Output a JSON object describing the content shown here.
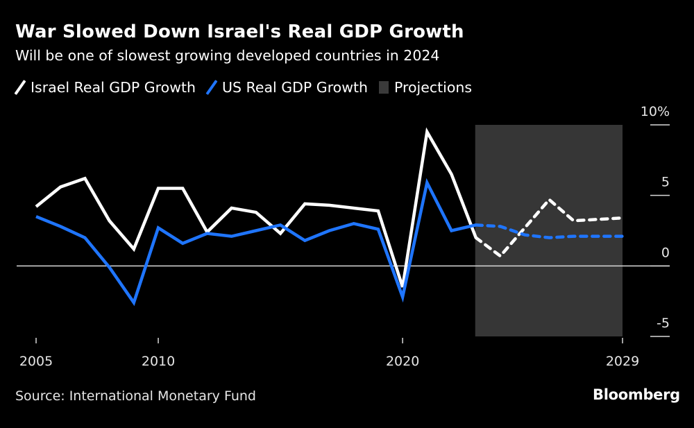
{
  "header": {
    "title": "War Slowed Down Israel's Real GDP Growth",
    "subtitle": "Will be one of slowest growing developed countries in 2024"
  },
  "legend": {
    "items": [
      {
        "label": "Israel Real GDP Growth",
        "icon": "line-swatch",
        "color": "#ffffff"
      },
      {
        "label": "US Real GDP Growth",
        "icon": "line-swatch",
        "color": "#1f75fe"
      },
      {
        "label": "Projections",
        "icon": "box-swatch",
        "color": "#3a3a3a"
      }
    ]
  },
  "footer": {
    "source": "Source: International Monetary Fund",
    "brand": "Bloomberg"
  },
  "chart_data": {
    "type": "line",
    "title": "War Slowed Down Israel's Real GDP Growth",
    "subtitle": "Will be one of slowest growing developed countries in 2024",
    "xlabel": "",
    "ylabel": "",
    "x": [
      2005,
      2006,
      2007,
      2008,
      2009,
      2010,
      2011,
      2012,
      2013,
      2014,
      2015,
      2016,
      2017,
      2018,
      2019,
      2020,
      2021,
      2022,
      2023,
      2024,
      2025,
      2026,
      2027,
      2028,
      2029
    ],
    "xlim": [
      2005,
      2029
    ],
    "ylim": [
      -5,
      10
    ],
    "x_ticks": [
      2005,
      2010,
      2020,
      2029
    ],
    "x_tick_labels": [
      "2005",
      "2010",
      "2020",
      "2029"
    ],
    "y_ticks": [
      10,
      5,
      0,
      -5
    ],
    "y_tick_labels": [
      "10%",
      "5",
      "0",
      "-5"
    ],
    "zero_line": true,
    "grid": false,
    "legend_position": "top-left",
    "projection_range": [
      2023,
      2029
    ],
    "series": [
      {
        "name": "Israel Real GDP Growth",
        "color": "#ffffff",
        "values": [
          4.2,
          5.6,
          6.2,
          3.2,
          1.2,
          5.5,
          5.5,
          2.4,
          4.1,
          3.8,
          2.3,
          4.4,
          4.3,
          4.1,
          3.9,
          -1.5,
          9.5,
          6.5,
          2.0,
          0.7,
          2.7,
          4.7,
          3.2,
          3.3,
          3.4
        ]
      },
      {
        "name": "US Real GDP Growth",
        "color": "#1f75fe",
        "values": [
          3.5,
          2.8,
          2.0,
          -0.1,
          -2.6,
          2.7,
          1.6,
          2.3,
          2.1,
          2.5,
          2.9,
          1.8,
          2.5,
          3.0,
          2.6,
          -2.2,
          5.9,
          2.5,
          2.9,
          2.8,
          2.2,
          2.0,
          2.1,
          2.1,
          2.1
        ]
      }
    ]
  }
}
